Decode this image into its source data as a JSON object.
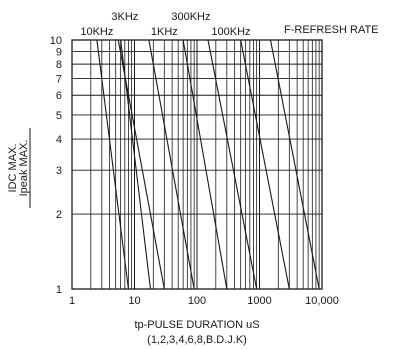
{
  "chart_data": {
    "type": "line",
    "title": "",
    "xlabel": "tp-PULSE DURATION uS",
    "xlabel_sub": "(1,2,3,4,6,8,B.D.J.K)",
    "ylabel": "Ipeak MAX.",
    "ylabel_sub": "IDC MAX.",
    "x_scale": "log",
    "y_scale": "log",
    "xlim": [
      1,
      10000
    ],
    "ylim": [
      1,
      10
    ],
    "x_ticks": [
      {
        "value": 1,
        "label": "1"
      },
      {
        "value": 10,
        "label": "10"
      },
      {
        "value": 100,
        "label": "100"
      },
      {
        "value": 1000,
        "label": "1000"
      },
      {
        "value": 10000,
        "label": "10,000"
      }
    ],
    "y_ticks": [
      {
        "value": 1,
        "label": "1"
      },
      {
        "value": 2,
        "label": "2"
      },
      {
        "value": 3,
        "label": "3"
      },
      {
        "value": 4,
        "label": "4"
      },
      {
        "value": 5,
        "label": "5"
      },
      {
        "value": 6,
        "label": "6"
      },
      {
        "value": 7,
        "label": "7"
      },
      {
        "value": 8,
        "label": "8"
      },
      {
        "value": 9,
        "label": "9"
      },
      {
        "value": 10,
        "label": "10"
      }
    ],
    "grid": true,
    "legend_title": "F-REFRESH RATE",
    "series": [
      {
        "name": "300KHz",
        "x": [
          5.5,
          30
        ],
        "y": [
          10,
          1
        ]
      },
      {
        "name": "100KHz",
        "x": [
          17,
          90
        ],
        "y": [
          10,
          1
        ]
      },
      {
        "name": "10KHz",
        "x": [
          6,
          18
        ],
        "y": [
          10,
          1
        ]
      },
      {
        "name": "3KHz",
        "x": [
          2.5,
          8
        ],
        "y": [
          10,
          1
        ]
      },
      {
        "name": "1KHz",
        "x": [
          60,
          300
        ],
        "y": [
          10,
          1
        ]
      },
      {
        "name": "",
        "x": [
          150,
          900
        ],
        "y": [
          10,
          1
        ]
      },
      {
        "name": "",
        "x": [
          500,
          3000
        ],
        "y": [
          10,
          1
        ]
      },
      {
        "name": "",
        "x": [
          1500,
          9000
        ],
        "y": [
          10,
          1
        ]
      }
    ],
    "series_labels": [
      {
        "text": "10KHz",
        "x": 2.5
      },
      {
        "text": "3KHz",
        "x": 7
      },
      {
        "text": "1KHz",
        "x": 30
      },
      {
        "text": "300KHz",
        "x": 80
      },
      {
        "text": "100KHz",
        "x": 350
      }
    ]
  }
}
